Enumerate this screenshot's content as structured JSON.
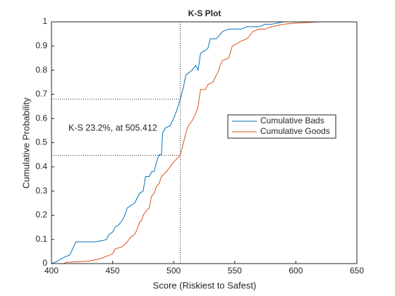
{
  "chart_data": {
    "type": "line",
    "title": "K-S Plot",
    "xlabel": "Score (Riskiest to Safest)",
    "ylabel": "Cumulative Probability",
    "annotation": "K-S 23.2%, at 505.412",
    "reference_lines": {
      "x": 505.412,
      "y": [
        0.448,
        0.68
      ]
    },
    "xlim": [
      400,
      650
    ],
    "xticks": [
      400,
      450,
      500,
      550,
      600,
      650
    ],
    "ylim": [
      0,
      1
    ],
    "yticks": [
      0,
      0.1,
      0.2,
      0.3,
      0.4,
      0.5,
      0.6,
      0.7,
      0.8,
      0.9,
      1
    ],
    "legend": "right",
    "series": [
      {
        "name": "Cumulative Bads",
        "color": "#0072BD",
        "x": [
          400,
          405,
          408,
          412,
          415,
          420,
          435,
          442,
          445,
          447,
          450,
          452,
          455,
          458,
          460,
          462,
          465,
          468,
          470,
          472,
          475,
          476,
          477,
          480,
          482,
          484,
          486,
          488,
          490,
          491,
          493,
          497,
          500,
          503,
          505.412,
          508,
          510,
          515,
          518,
          520,
          522,
          525,
          528,
          530,
          535,
          540,
          545,
          555,
          560,
          570,
          575,
          580,
          590,
          620
        ],
        "values": [
          0,
          0.01,
          0.02,
          0.03,
          0.035,
          0.09,
          0.09,
          0.095,
          0.1,
          0.12,
          0.13,
          0.15,
          0.16,
          0.18,
          0.2,
          0.23,
          0.24,
          0.25,
          0.27,
          0.29,
          0.3,
          0.33,
          0.36,
          0.36,
          0.38,
          0.38,
          0.42,
          0.45,
          0.45,
          0.54,
          0.56,
          0.57,
          0.6,
          0.64,
          0.68,
          0.73,
          0.78,
          0.8,
          0.82,
          0.8,
          0.87,
          0.88,
          0.89,
          0.93,
          0.93,
          0.96,
          0.97,
          0.97,
          0.98,
          0.98,
          0.99,
          0.99,
          1,
          1
        ]
      },
      {
        "name": "Cumulative Goods",
        "color": "#D95319",
        "x": [
          410,
          412,
          430,
          440,
          445,
          450,
          452,
          458,
          462,
          465,
          468,
          470,
          472,
          474,
          475,
          478,
          480,
          482,
          484,
          486,
          488,
          490,
          492,
          494,
          497,
          500,
          505.412,
          508,
          510,
          512,
          515,
          518,
          520,
          522,
          526,
          528,
          532,
          535,
          537,
          538,
          540,
          545,
          548,
          552,
          555,
          560,
          565,
          570,
          575,
          580,
          590,
          600,
          620
        ],
        "values": [
          0,
          0.005,
          0.01,
          0.02,
          0.03,
          0.04,
          0.06,
          0.07,
          0.09,
          0.11,
          0.12,
          0.14,
          0.17,
          0.18,
          0.2,
          0.22,
          0.23,
          0.28,
          0.29,
          0.32,
          0.33,
          0.36,
          0.37,
          0.38,
          0.4,
          0.42,
          0.448,
          0.5,
          0.54,
          0.57,
          0.59,
          0.62,
          0.65,
          0.72,
          0.72,
          0.74,
          0.75,
          0.78,
          0.8,
          0.82,
          0.84,
          0.85,
          0.9,
          0.91,
          0.92,
          0.93,
          0.96,
          0.97,
          0.97,
          0.98,
          0.99,
          0.995,
          1
        ]
      }
    ]
  }
}
